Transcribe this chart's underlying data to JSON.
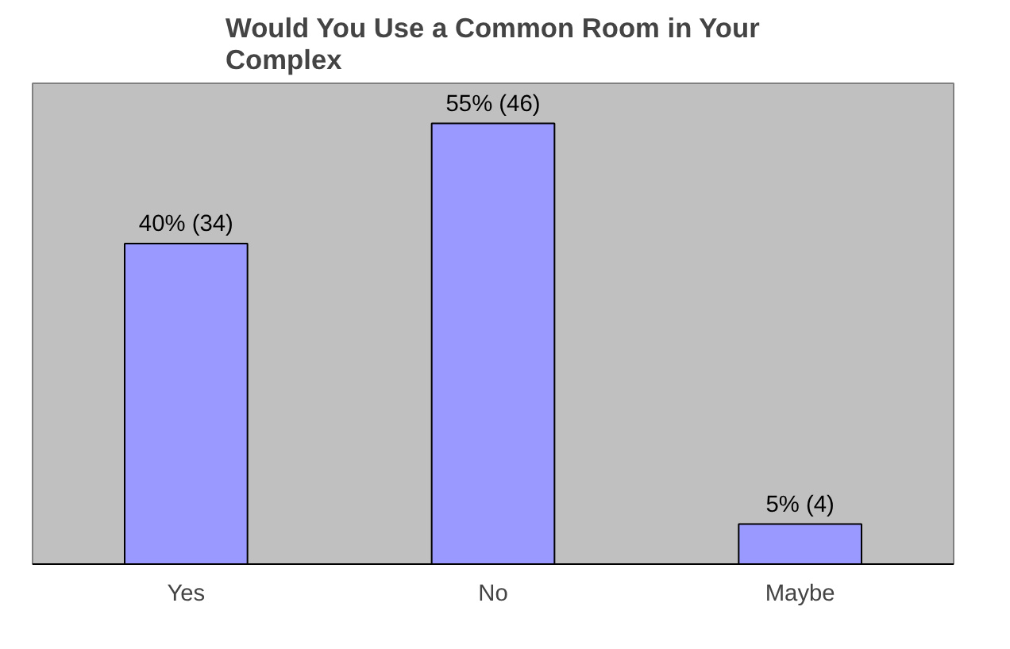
{
  "chart_data": {
    "type": "bar",
    "title": "Would You Use a Common Room in Your Complex",
    "categories": [
      "Yes",
      "No",
      "Maybe"
    ],
    "values": [
      40,
      55,
      5
    ],
    "value_labels": [
      "40% (34)",
      "55% (46)",
      "5% (4)"
    ],
    "color": "#9999ff",
    "ylim": [
      0,
      60
    ],
    "grid": false
  }
}
